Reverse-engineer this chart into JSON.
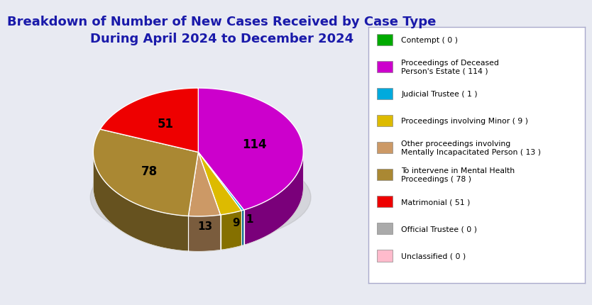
{
  "title": "Breakdown of Number of New Cases Received by Case Type\nDuring April 2024 to December 2024",
  "title_color": "#1a1aaa",
  "title_fontsize": 13,
  "slices": [
    {
      "label": "Contempt",
      "value": 0,
      "color": "#00aa00"
    },
    {
      "label": "Proceedings of Deceased Person's Estate",
      "value": 114,
      "color": "#cc00cc"
    },
    {
      "label": "Judicial Trustee",
      "value": 1,
      "color": "#00aadd"
    },
    {
      "label": "Proceedings involving Minor",
      "value": 9,
      "color": "#ddbb00"
    },
    {
      "label": "Other proceedings involving Mentally Incapacitated Person",
      "value": 13,
      "color": "#cc9966"
    },
    {
      "label": "To intervene in Mental Health Proceedings",
      "value": 78,
      "color": "#aa8833"
    },
    {
      "label": "Matrimonial",
      "value": 51,
      "color": "#ee0000"
    },
    {
      "label": "Official Trustee",
      "value": 0,
      "color": "#aaaaaa"
    },
    {
      "label": "Unclassified",
      "value": 0,
      "color": "#ffbbcc"
    }
  ],
  "legend_labels": [
    "Contempt ( 0 )",
    "Proceedings of Deceased\nPerson's Estate ( 114 )",
    "Judicial Trustee ( 1 )",
    "Proceedings involving Minor ( 9 )",
    "Other proceedings involving\nMentally Incapacitated Person ( 13 )",
    "To intervene in Mental Health\nProceedings ( 78 )",
    "Matrimonial ( 51 )",
    "Official Trustee ( 0 )",
    "Unclassified ( 0 )"
  ],
  "legend_colors": [
    "#00aa00",
    "#cc00cc",
    "#00aadd",
    "#ddbb00",
    "#cc9966",
    "#aa8833",
    "#ee0000",
    "#aaaaaa",
    "#ffbbcc"
  ],
  "background_color": "#e8eaf2",
  "startangle_deg": 90
}
